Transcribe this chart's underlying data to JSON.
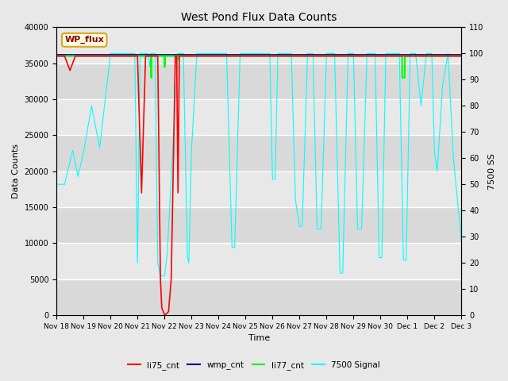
{
  "title": "West Pond Flux Data Counts",
  "ylabel_left": "Data Counts",
  "ylabel_right": "7500 SS",
  "xlabel": "Time",
  "ylim_left": [
    0,
    40000
  ],
  "ylim_right": [
    0,
    110
  ],
  "watermark": "WP_flux",
  "fig_bg": "#e8e8e8",
  "plot_bg_light": "#e8e8e8",
  "plot_bg_dark": "#d0d0d0",
  "legend_items": [
    "li75_cnt",
    "wmp_cnt",
    "li77_cnt",
    "7500 Signal"
  ],
  "legend_colors": [
    "red",
    "navy",
    "lime",
    "cyan"
  ],
  "tick_labels": [
    "Nov 18",
    "Nov 19",
    "Nov 20",
    "Nov 21",
    "Nov 22",
    "Nov 23",
    "Nov 24",
    "Nov 25",
    "Nov 26",
    "Nov 27",
    "Nov 28",
    "Nov 29",
    "Nov 30",
    "Dec 1",
    "Dec 2",
    "Dec 3"
  ],
  "yticks_left": [
    0,
    5000,
    10000,
    15000,
    20000,
    25000,
    30000,
    35000,
    40000
  ],
  "yticks_right": [
    0,
    10,
    20,
    30,
    40,
    50,
    60,
    70,
    80,
    90,
    100,
    110
  ]
}
